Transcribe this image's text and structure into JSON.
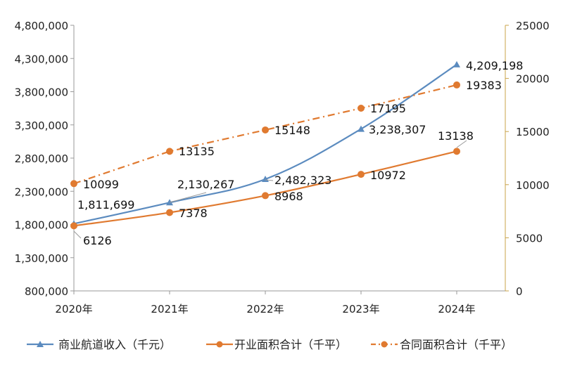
{
  "chart_data": {
    "type": "line",
    "categories": [
      "2020年",
      "2021年",
      "2022年",
      "2023年",
      "2024年"
    ],
    "y_left": {
      "ylim": [
        800000,
        4800000
      ],
      "ticks": [
        "800,000",
        "1,300,000",
        "1,800,000",
        "2,300,000",
        "2,800,000",
        "3,300,000",
        "3,800,000",
        "4,300,000",
        "4,800,000"
      ]
    },
    "y_right": {
      "ylim": [
        0,
        25000
      ],
      "ticks": [
        "0",
        "5000",
        "10000",
        "15000",
        "20000",
        "25000"
      ]
    },
    "series": [
      {
        "name": "商业航道收入（千元）",
        "axis": "left",
        "values": [
          1811699,
          2130267,
          2482323,
          3238307,
          4209198
        ],
        "labels": [
          "1,811,699",
          "2,130,267",
          "2,482,323",
          "3,238,307",
          "4,209,198"
        ],
        "color": "#5b8bbf",
        "marker": "triangle",
        "line": "solid",
        "smooth": true
      },
      {
        "name": "开业面积合计（千平）",
        "axis": "right",
        "values": [
          6126,
          7378,
          8968,
          10972,
          13138
        ],
        "labels": [
          "6126",
          "7378",
          "8968",
          "10972",
          "13138"
        ],
        "color": "#e07a30",
        "marker": "circle",
        "line": "solid",
        "smooth": true
      },
      {
        "name": "合同面积合计（千平）",
        "axis": "right",
        "values": [
          10099,
          13135,
          15148,
          17195,
          19383
        ],
        "labels": [
          "10099",
          "13135",
          "15148",
          "17195",
          "19383"
        ],
        "color": "#e07a30",
        "marker": "circle",
        "line": "dashdot",
        "smooth": false
      }
    ],
    "grid": false,
    "legend_position": "bottom"
  }
}
